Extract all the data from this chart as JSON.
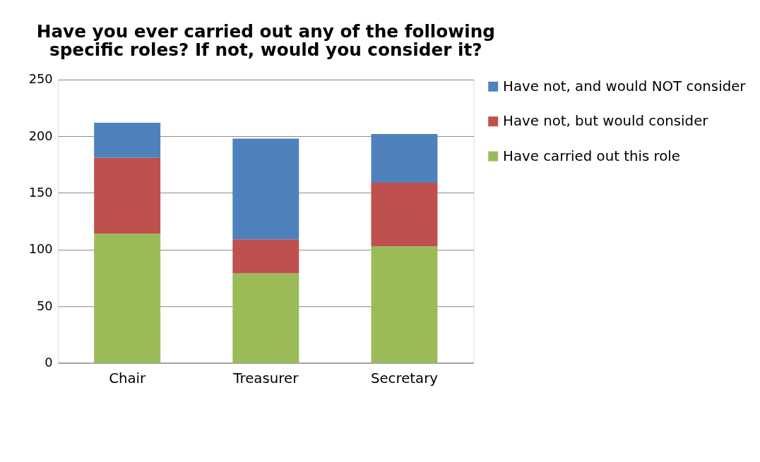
{
  "chart_data": {
    "type": "bar",
    "title": "Have you ever carried out any of the following specific roles?  If not, would you consider it?",
    "categories": [
      "Chair",
      "Treasurer",
      "Secretary"
    ],
    "stacked": true,
    "series": [
      {
        "name": "Have carried out this role",
        "color": "#9bbb59",
        "values": [
          114,
          79,
          103
        ]
      },
      {
        "name": "Have not, but would consider",
        "color": "#c0504d",
        "values": [
          67,
          30,
          56
        ]
      },
      {
        "name": "Have not, and would NOT consider",
        "color": "#4f81bd",
        "values": [
          31,
          89,
          43
        ]
      }
    ],
    "ylim": [
      0,
      250
    ],
    "yticks": [
      0,
      50,
      100,
      150,
      200,
      250
    ],
    "grid": "y",
    "legend": "right"
  }
}
